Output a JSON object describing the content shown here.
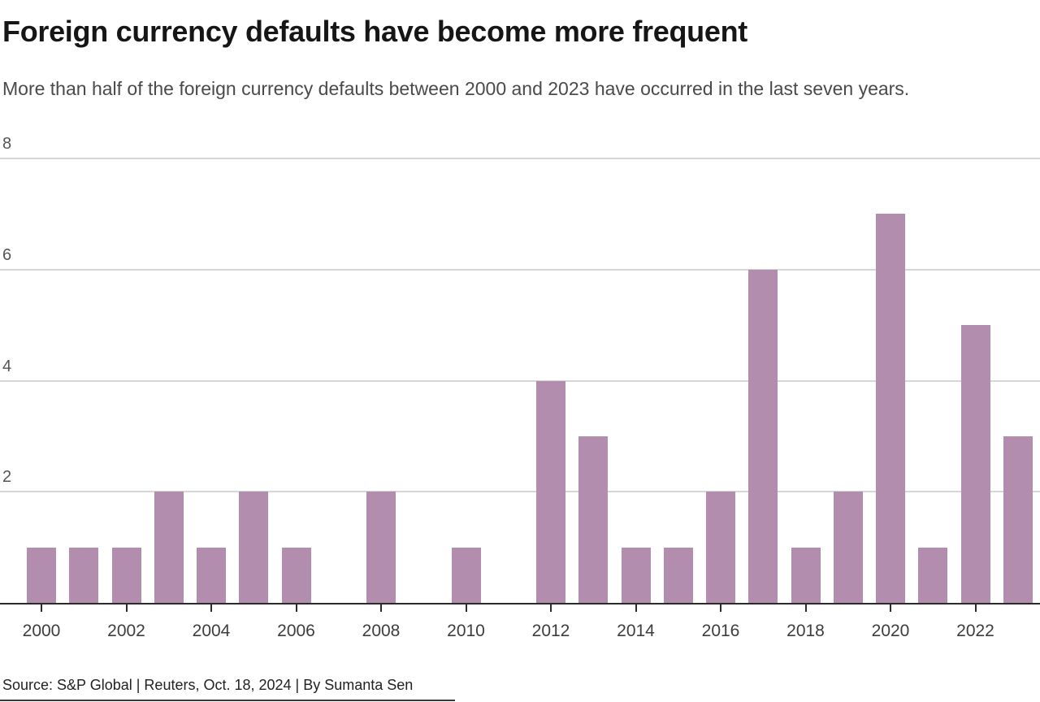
{
  "header": {
    "title": "Foreign currency defaults have become more frequent",
    "subtitle": "More than half of the foreign currency defaults between 2000 and 2023 have occurred in the last seven years."
  },
  "chart_data": {
    "type": "bar",
    "title": "Foreign currency defaults have become more frequent",
    "subtitle": "More than half of the foreign currency defaults between 2000 and 2023 have occurred in the last seven years.",
    "categories": [
      "2000",
      "2001",
      "2002",
      "2003",
      "2004",
      "2005",
      "2006",
      "2007",
      "2008",
      "2009",
      "2010",
      "2011",
      "2012",
      "2013",
      "2014",
      "2015",
      "2016",
      "2017",
      "2018",
      "2019",
      "2020",
      "2021",
      "2022",
      "2023"
    ],
    "values": [
      1,
      1,
      1,
      2,
      1,
      2,
      1,
      0,
      2,
      0,
      1,
      0,
      4,
      3,
      1,
      1,
      2,
      6,
      1,
      2,
      7,
      1,
      5,
      3
    ],
    "xlabel": "",
    "ylabel": "",
    "ylim": [
      0,
      8
    ],
    "yticks": [
      2,
      4,
      6,
      8
    ],
    "xtick_labels": [
      "2000",
      "2002",
      "2004",
      "2006",
      "2008",
      "2010",
      "2012",
      "2014",
      "2016",
      "2018",
      "2020",
      "2022"
    ],
    "grid": true,
    "legend_position": "none",
    "bar_color": "#b28dad",
    "gridline_color": "#d6d6d6",
    "axis_color": "#2b2b2b"
  },
  "footer": {
    "source": "Source: S&P Global | Reuters, Oct. 18, 2024 | By Sumanta Sen"
  }
}
